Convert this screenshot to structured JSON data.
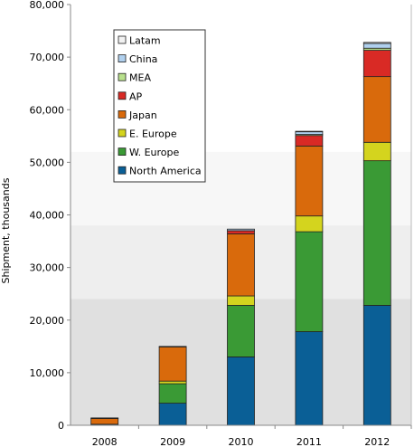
{
  "chart_data": {
    "type": "bar",
    "stacked": true,
    "categories": [
      "2008",
      "2009",
      "2010",
      "2011",
      "2012"
    ],
    "ylabel": "Shipment, thousands",
    "xlabel": "",
    "ylim": [
      0,
      80000
    ],
    "yticks": [
      0,
      10000,
      20000,
      30000,
      40000,
      50000,
      60000,
      70000,
      80000
    ],
    "ytick_labels": [
      "0",
      "10,000",
      "20,000",
      "30,000",
      "40,000",
      "50,000",
      "60,000",
      "70,000",
      "80,000"
    ],
    "background_bands": [
      "#e0e0e0",
      "#eeeeee",
      "#f7f7f7",
      "#ffffff"
    ],
    "legend_position": "top-left",
    "series": [
      {
        "name": "North America",
        "color": "#0a5f96",
        "values": [
          200,
          4200,
          13000,
          17800,
          22800
        ]
      },
      {
        "name": "W. Europe",
        "color": "#3a9a35",
        "values": [
          0,
          3700,
          9800,
          19000,
          27500
        ]
      },
      {
        "name": "E. Europe",
        "color": "#d4d41e",
        "values": [
          0,
          500,
          1800,
          3000,
          3500
        ]
      },
      {
        "name": "Japan",
        "color": "#d96a0c",
        "values": [
          1100,
          6500,
          11800,
          13300,
          12500
        ]
      },
      {
        "name": "AP",
        "color": "#d92a25",
        "values": [
          100,
          100,
          600,
          2000,
          5000
        ]
      },
      {
        "name": "MEA",
        "color": "#b8e08c",
        "values": [
          0,
          0,
          0,
          200,
          400
        ]
      },
      {
        "name": "China",
        "color": "#b0d0ee",
        "values": [
          0,
          0,
          300,
          500,
          900
        ]
      },
      {
        "name": "Latam",
        "color": "#f2f2f2",
        "values": [
          0,
          0,
          0,
          100,
          200
        ]
      }
    ],
    "legend_order": [
      "Latam",
      "China",
      "MEA",
      "AP",
      "Japan",
      "E. Europe",
      "W. Europe",
      "North America"
    ]
  }
}
